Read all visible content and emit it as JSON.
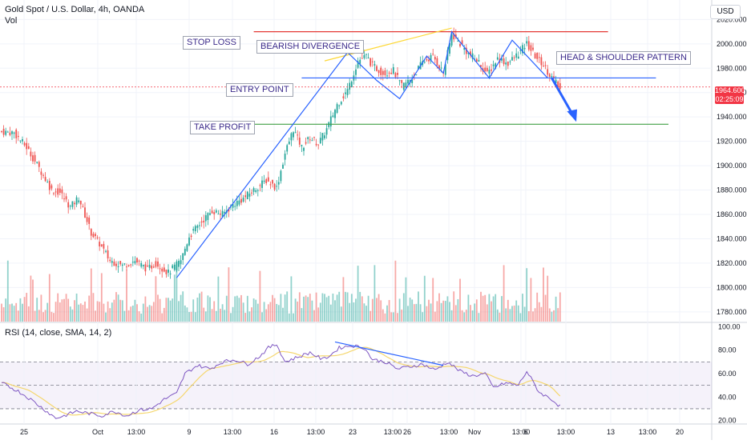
{
  "header": {
    "title": "Gold Spot / U.S. Dollar, 4h, OANDA",
    "volume_label": "Vol",
    "currency": "USD",
    "rsi_title": "RSI (14, close, SMA, 14, 2)"
  },
  "price_badge": {
    "price": "1964.600",
    "countdown": "02:25:09"
  },
  "annotations": {
    "stop_loss": "STOP LOSS",
    "bearish_divergence": "BEARISH DIVERGENCE",
    "head_shoulder": "HEAD & SHOULDER PATTERN",
    "entry_point": "ENTRY POINT",
    "take_profit": "TAKE PROFIT"
  },
  "colors": {
    "up": "#26a69a",
    "down": "#ef5350",
    "trend_line": "#2962ff",
    "stop_loss_line": "#e53935",
    "take_profit_line": "#43a047",
    "divergence_line": "#fdd835",
    "rsi_line": "#7e57c2",
    "rsi_ma": "#f5d76e"
  },
  "chart_data": {
    "type": "candlestick",
    "price_axis": {
      "ticks": [
        "2020.000",
        "2000.000",
        "1980.000",
        "1960.000",
        "1940.000",
        "1920.000",
        "1900.000",
        "1880.000",
        "1860.000",
        "1840.000",
        "1820.000",
        "1800.000",
        "1780.000"
      ],
      "ylim": [
        1772,
        2036
      ]
    },
    "x_ticks": [
      "25",
      "Oct",
      "13:00",
      "9",
      "13:00",
      "16",
      "13:00",
      "23",
      "13:00",
      "26",
      "13:00",
      "Nov",
      "13:00",
      "6",
      "13:00",
      "13",
      "13:00",
      "20"
    ],
    "anchors": [
      [
        0,
        1928
      ],
      [
        6,
        1927
      ],
      [
        12,
        1915
      ],
      [
        18,
        1898
      ],
      [
        24,
        1880
      ],
      [
        28,
        1878
      ],
      [
        33,
        1866
      ],
      [
        37,
        1874
      ],
      [
        43,
        1845
      ],
      [
        47,
        1836
      ],
      [
        52,
        1822
      ],
      [
        58,
        1818
      ],
      [
        64,
        1822
      ],
      [
        70,
        1815
      ],
      [
        74,
        1820
      ],
      [
        80,
        1812
      ],
      [
        86,
        1822
      ],
      [
        90,
        1842
      ],
      [
        96,
        1854
      ],
      [
        101,
        1863
      ],
      [
        106,
        1860
      ],
      [
        111,
        1868
      ],
      [
        116,
        1873
      ],
      [
        121,
        1880
      ],
      [
        127,
        1888
      ],
      [
        132,
        1882
      ],
      [
        136,
        1910
      ],
      [
        140,
        1930
      ],
      [
        144,
        1915
      ],
      [
        148,
        1923
      ],
      [
        152,
        1918
      ],
      [
        156,
        1930
      ],
      [
        161,
        1950
      ],
      [
        166,
        1962
      ],
      [
        171,
        1986
      ],
      [
        175,
        1990
      ],
      [
        178,
        1982
      ],
      [
        183,
        1976
      ],
      [
        188,
        1978
      ],
      [
        192,
        1965
      ],
      [
        197,
        1972
      ],
      [
        202,
        1985
      ],
      [
        207,
        1990
      ],
      [
        212,
        1976
      ],
      [
        216,
        2008
      ],
      [
        220,
        2000
      ],
      [
        224,
        1992
      ],
      [
        229,
        1985
      ],
      [
        233,
        1975
      ],
      [
        238,
        1988
      ],
      [
        243,
        1984
      ],
      [
        248,
        1992
      ],
      [
        252,
        2000
      ],
      [
        256,
        1990
      ],
      [
        260,
        1983
      ],
      [
        263,
        1975
      ],
      [
        266,
        1968
      ],
      [
        268,
        1963
      ]
    ],
    "volume_max": 1.0,
    "rsi": {
      "ylim": [
        17,
        103
      ],
      "ticks": [
        "100.00",
        "80.00",
        "60.00",
        "40.00",
        "20.00"
      ],
      "levels": [
        70,
        50,
        30
      ],
      "anchors": [
        [
          0,
          52
        ],
        [
          8,
          45
        ],
        [
          14,
          38
        ],
        [
          20,
          30
        ],
        [
          26,
          22
        ],
        [
          30,
          24
        ],
        [
          36,
          28
        ],
        [
          42,
          26
        ],
        [
          48,
          24
        ],
        [
          54,
          28
        ],
        [
          60,
          24
        ],
        [
          66,
          29
        ],
        [
          72,
          30
        ],
        [
          78,
          38
        ],
        [
          84,
          43
        ],
        [
          88,
          60
        ],
        [
          94,
          67
        ],
        [
          100,
          64
        ],
        [
          106,
          70
        ],
        [
          112,
          72
        ],
        [
          118,
          68
        ],
        [
          124,
          75
        ],
        [
          128,
          82
        ],
        [
          132,
          85
        ],
        [
          136,
          70
        ],
        [
          142,
          74
        ],
        [
          148,
          78
        ],
        [
          154,
          72
        ],
        [
          158,
          76
        ],
        [
          162,
          82
        ],
        [
          168,
          84
        ],
        [
          174,
          82
        ],
        [
          178,
          72
        ],
        [
          184,
          70
        ],
        [
          190,
          64
        ],
        [
          196,
          66
        ],
        [
          202,
          68
        ],
        [
          208,
          63
        ],
        [
          214,
          70
        ],
        [
          220,
          62
        ],
        [
          226,
          58
        ],
        [
          232,
          60
        ],
        [
          236,
          48
        ],
        [
          242,
          52
        ],
        [
          248,
          50
        ],
        [
          252,
          62
        ],
        [
          258,
          44
        ],
        [
          264,
          38
        ],
        [
          268,
          32
        ]
      ]
    },
    "bar_count": 270
  }
}
